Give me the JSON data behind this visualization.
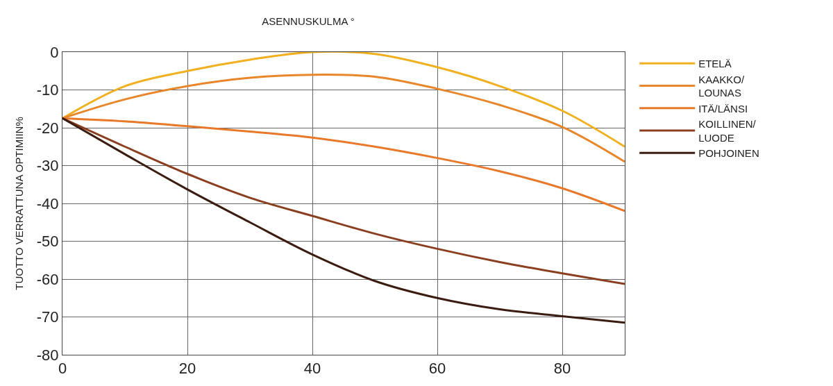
{
  "chart_data": {
    "type": "line",
    "title": "ASENNUSKULMA °",
    "ylabel": "TUOTTO VERRATTUNA OPTIMIIN%",
    "x": [
      0,
      10,
      20,
      30,
      40,
      50,
      60,
      70,
      80,
      90
    ],
    "series": [
      {
        "name": "ETELÄ",
        "color": "#f0b020",
        "values": [
          -17.5,
          -9,
          -5,
          -2,
          0,
          -0.5,
          -4,
          -9,
          -15.5,
          -25
        ]
      },
      {
        "name": "KAAKKO/\nLOUNAS",
        "color": "#e8862a",
        "values": [
          -17.5,
          -12.5,
          -9,
          -6.8,
          -6,
          -6.5,
          -9.7,
          -14,
          -19.8,
          -29
        ]
      },
      {
        "name": "ITÄ/LÄNSI",
        "color": "#e8782a",
        "values": [
          -17.5,
          -18.3,
          -19.6,
          -21,
          -22.6,
          -25,
          -28,
          -31.5,
          -36,
          -42
        ]
      },
      {
        "name": "KOILLINEN/\nLUODE",
        "color": "#8a4020",
        "values": [
          -17.5,
          -25,
          -32.2,
          -38.5,
          -43.3,
          -48,
          -52,
          -55.5,
          -58.5,
          -61.3
        ]
      },
      {
        "name": "POHJOINEN",
        "color": "#3a1c10",
        "values": [
          -17.5,
          -27,
          -36.3,
          -45,
          -53.5,
          -60.5,
          -65,
          -68,
          -69.8,
          -71.5
        ]
      }
    ],
    "xlim": [
      0,
      90
    ],
    "xticks": [
      0,
      20,
      40,
      60,
      80
    ],
    "ylim": [
      -80,
      0
    ],
    "yticks": [
      -80,
      -70,
      -60,
      -50,
      -40,
      -30,
      -20,
      -10,
      0
    ],
    "grid": true,
    "legend": "right",
    "marker": "none",
    "line_style": "solid"
  }
}
